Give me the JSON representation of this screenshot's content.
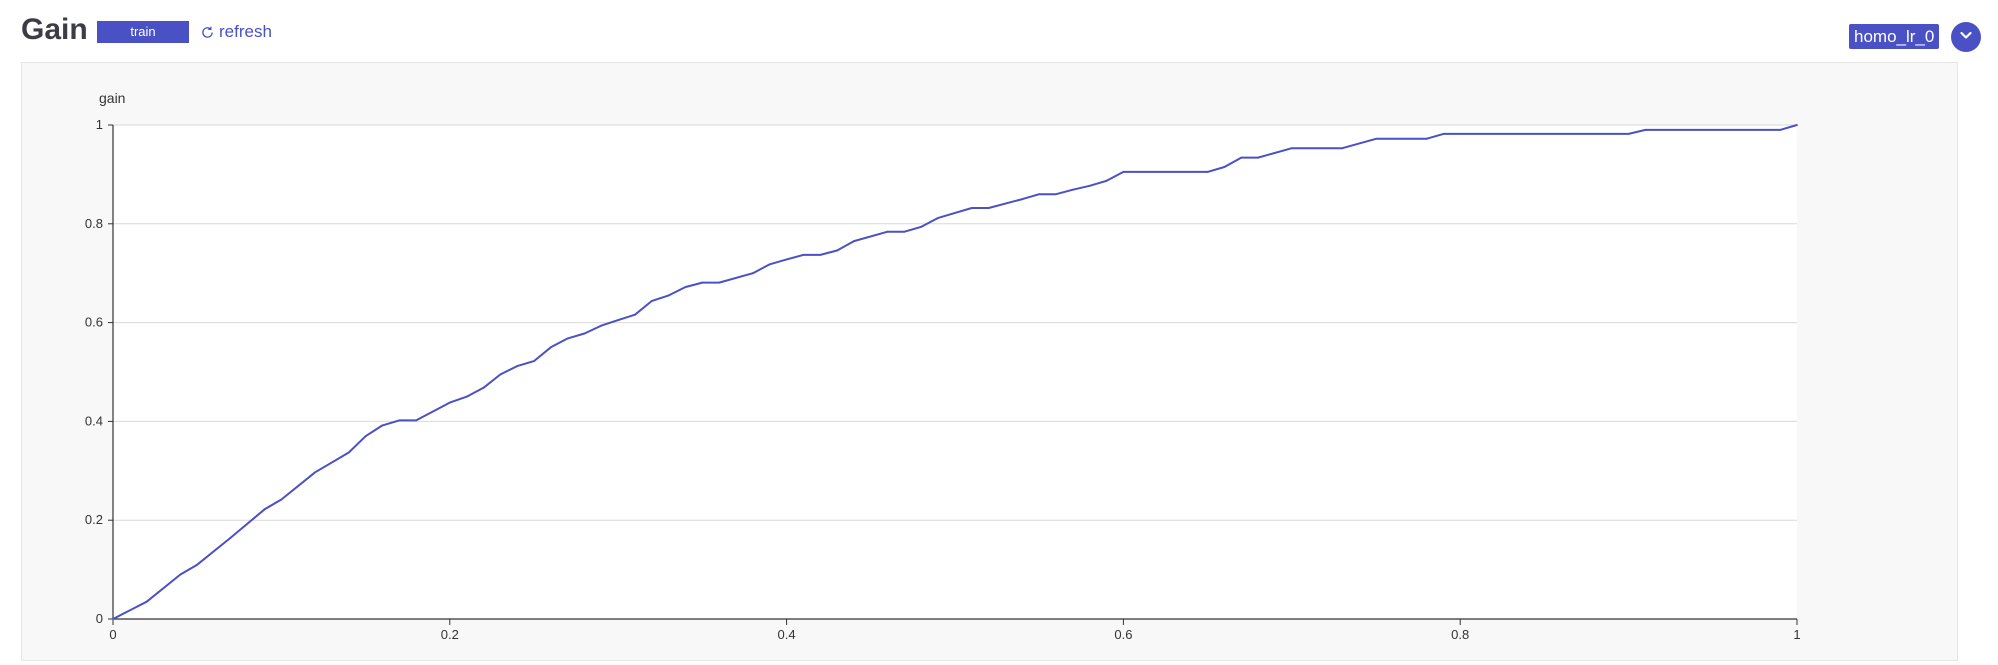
{
  "header": {
    "title": "Gain",
    "tag_label": "train",
    "refresh_label": "refresh",
    "component_name": "homo_lr_0"
  },
  "colors": {
    "accent": "#4951c5",
    "grid": "#d9d9d9",
    "panel_bg": "#f8f8f8",
    "plot_bg": "#ffffff"
  },
  "icons": {
    "refresh": "refresh-icon",
    "dropdown": "chevron-down-icon"
  },
  "chart_data": {
    "type": "line",
    "title": "",
    "xlabel": "",
    "ylabel": "gain",
    "xlim": [
      0,
      1
    ],
    "ylim": [
      0,
      1
    ],
    "x_ticks": [
      "0",
      "0.2",
      "0.4",
      "0.6",
      "0.8",
      "1"
    ],
    "y_ticks": [
      "0",
      "0.2",
      "0.4",
      "0.6",
      "0.8",
      "1"
    ],
    "grid": true,
    "series": [
      {
        "color": "#4951c5",
        "points": [
          [
            0,
            0
          ],
          [
            0.02,
            0.035
          ],
          [
            0.04,
            0.09
          ],
          [
            0.05,
            0.11
          ],
          [
            0.07,
            0.165
          ],
          [
            0.09,
            0.222
          ],
          [
            0.1,
            0.242
          ],
          [
            0.12,
            0.297
          ],
          [
            0.14,
            0.337
          ],
          [
            0.15,
            0.37
          ],
          [
            0.16,
            0.392
          ],
          [
            0.17,
            0.402
          ],
          [
            0.18,
            0.402
          ],
          [
            0.2,
            0.438
          ],
          [
            0.21,
            0.45
          ],
          [
            0.22,
            0.468
          ],
          [
            0.23,
            0.495
          ],
          [
            0.24,
            0.512
          ],
          [
            0.25,
            0.522
          ],
          [
            0.26,
            0.55
          ],
          [
            0.27,
            0.568
          ],
          [
            0.28,
            0.578
          ],
          [
            0.29,
            0.594
          ],
          [
            0.3,
            0.605
          ],
          [
            0.31,
            0.616
          ],
          [
            0.32,
            0.644
          ],
          [
            0.33,
            0.655
          ],
          [
            0.34,
            0.672
          ],
          [
            0.35,
            0.681
          ],
          [
            0.36,
            0.681
          ],
          [
            0.38,
            0.7
          ],
          [
            0.39,
            0.718
          ],
          [
            0.4,
            0.728
          ],
          [
            0.41,
            0.737
          ],
          [
            0.42,
            0.737
          ],
          [
            0.43,
            0.746
          ],
          [
            0.44,
            0.765
          ],
          [
            0.46,
            0.784
          ],
          [
            0.47,
            0.784
          ],
          [
            0.48,
            0.794
          ],
          [
            0.49,
            0.812
          ],
          [
            0.5,
            0.822
          ],
          [
            0.51,
            0.832
          ],
          [
            0.52,
            0.832
          ],
          [
            0.54,
            0.85
          ],
          [
            0.55,
            0.86
          ],
          [
            0.56,
            0.86
          ],
          [
            0.57,
            0.869
          ],
          [
            0.58,
            0.877
          ],
          [
            0.59,
            0.887
          ],
          [
            0.6,
            0.905
          ],
          [
            0.65,
            0.905
          ],
          [
            0.66,
            0.915
          ],
          [
            0.67,
            0.934
          ],
          [
            0.68,
            0.934
          ],
          [
            0.7,
            0.953
          ],
          [
            0.73,
            0.953
          ],
          [
            0.75,
            0.972
          ],
          [
            0.78,
            0.972
          ],
          [
            0.79,
            0.982
          ],
          [
            0.9,
            0.982
          ],
          [
            0.91,
            0.99
          ],
          [
            0.99,
            0.99
          ],
          [
            1,
            1
          ]
        ]
      }
    ]
  }
}
